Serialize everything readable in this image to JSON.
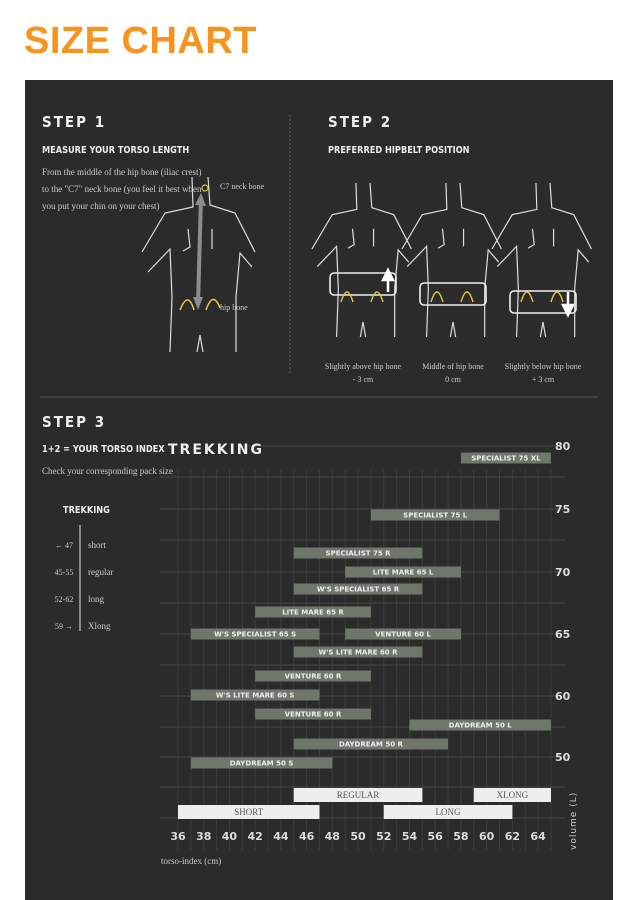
{
  "title": "SIZE CHART",
  "colors": {
    "accent": "#F7931E",
    "panel": "#2b2b2b",
    "bar": "#6f776c",
    "size_bar": "#eeeeee",
    "hip": "#e5c53a"
  },
  "step1": {
    "heading": "STEP 1",
    "subheading": "MEASURE YOUR TORSO LENGTH",
    "text": [
      "From the middle of the hip bone (iliac crest)",
      "to the \"C7\" neck bone (you feel it best when",
      "you put your chin on your chest)"
    ],
    "c7_label": "C7 neck bone",
    "hip_label": "hip bone"
  },
  "step2": {
    "heading": "STEP 2",
    "subheading": "PREFERRED HIPBELT POSITION",
    "positions": [
      {
        "label": "Slightly above hip bone",
        "offset": "- 3 cm",
        "arrow": "up"
      },
      {
        "label": "Middle of hip bone",
        "offset": "0 cm",
        "arrow": "none"
      },
      {
        "label": "Slightly below hip bone",
        "offset": "+ 3 cm",
        "arrow": "down"
      }
    ]
  },
  "step3": {
    "heading": "STEP 3",
    "subheading": "1+2 = YOUR TORSO INDEX",
    "text": "Check your corresponding pack size",
    "legend_title": "TREKKING",
    "legend": [
      {
        "range": "← 47",
        "size": "short"
      },
      {
        "range": "45-55",
        "size": "regular"
      },
      {
        "range": "52-62",
        "size": "long"
      },
      {
        "range": "59 →",
        "size": "Xlong"
      }
    ]
  },
  "chart_data": {
    "type": "bar",
    "orientation": "horizontal-range",
    "title": "TREKKING",
    "xlabel": "torso-index (cm)",
    "ylabel": "volume (L)",
    "xlim": [
      36,
      65
    ],
    "xticks": [
      36,
      38,
      40,
      42,
      44,
      46,
      48,
      50,
      52,
      54,
      56,
      58,
      60,
      62,
      64
    ],
    "yticks": [
      "80",
      "75",
      "70",
      "65",
      "60",
      "50"
    ],
    "grid": true,
    "bars": [
      {
        "name": "SPECIALIST 75 XL",
        "start": 58,
        "end": 65
      },
      {
        "name": "SPECIALIST 75 L",
        "start": 51,
        "end": 61
      },
      {
        "name": "SPECIALIST 75 R",
        "start": 45,
        "end": 55
      },
      {
        "name": "LITE MARE 65 L",
        "start": 49,
        "end": 58
      },
      {
        "name": "W'S SPECIALIST 65 R",
        "start": 45,
        "end": 55
      },
      {
        "name": "LITE MARE 65 R",
        "start": 42,
        "end": 51
      },
      {
        "name": "W'S SPECIALIST 65 S",
        "start": 37,
        "end": 47
      },
      {
        "name": "VENTURE 60 L",
        "start": 49,
        "end": 58
      },
      {
        "name": "W'S LITE MARE 60 R",
        "start": 45,
        "end": 55
      },
      {
        "name": "VENTURE 60 R",
        "start": 42,
        "end": 51
      },
      {
        "name": "W'S LITE MARE 60 S",
        "start": 37,
        "end": 47
      },
      {
        "name": "VENTURE 60 R",
        "start": 42,
        "end": 51
      },
      {
        "name": "DAYDREAM 50 L",
        "start": 54,
        "end": 65
      },
      {
        "name": "DAYDREAM 50 R",
        "start": 45,
        "end": 57
      },
      {
        "name": "DAYDREAM 50 S",
        "start": 37,
        "end": 48
      }
    ],
    "sizes": [
      {
        "name": "REGULAR",
        "start": 45,
        "end": 55
      },
      {
        "name": "XLONG",
        "start": 59,
        "end": 65
      },
      {
        "name": "SHORT",
        "start": 36,
        "end": 47
      },
      {
        "name": "LONG",
        "start": 52,
        "end": 62
      }
    ]
  }
}
